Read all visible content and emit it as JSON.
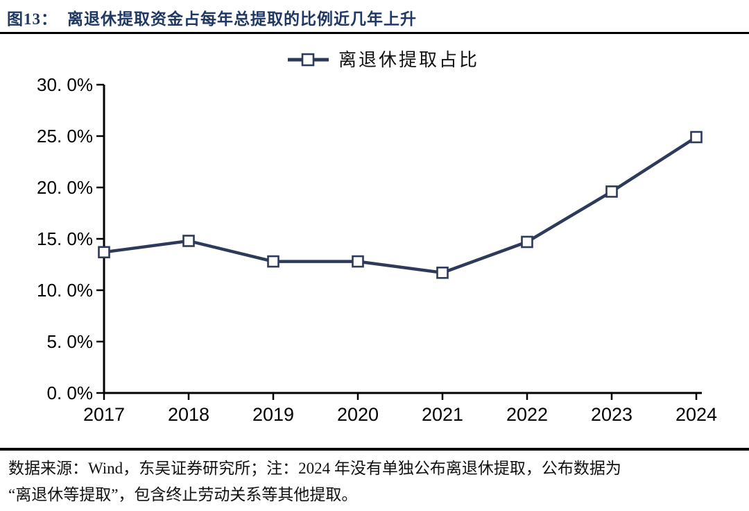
{
  "page": {
    "figure_label": "图13：",
    "title": "离退休提取资金占每年总提取的比例近几年上升"
  },
  "chart_data": {
    "type": "line",
    "legend": [
      "离退休提取占比"
    ],
    "legend_position": "top-center",
    "categories": [
      "2017",
      "2018",
      "2019",
      "2020",
      "2021",
      "2022",
      "2023",
      "2024"
    ],
    "series": [
      {
        "name": "离退休提取占比",
        "values": [
          13.7,
          14.8,
          12.8,
          12.8,
          11.7,
          14.7,
          19.6,
          24.9
        ]
      }
    ],
    "ylim": [
      0,
      30
    ],
    "ytick_step": 5,
    "ytick_labels": [
      "0. 0%",
      "5. 0%",
      "10. 0%",
      "15. 0%",
      "20. 0%",
      "25. 0%",
      "30. 0%"
    ],
    "grid": false,
    "marker": "hollow-square",
    "colors": {
      "line": "#2e3a59",
      "marker_fill": "#ffffff",
      "axis": "#000000",
      "title": "#1f3864"
    }
  },
  "footer": {
    "line1": "数据来源：Wind，东吴证券研究所；注：2024 年没有单独公布离退休提取，公布数据为",
    "line2": "“离退休等提取”，包含终止劳动关系等其他提取。"
  }
}
